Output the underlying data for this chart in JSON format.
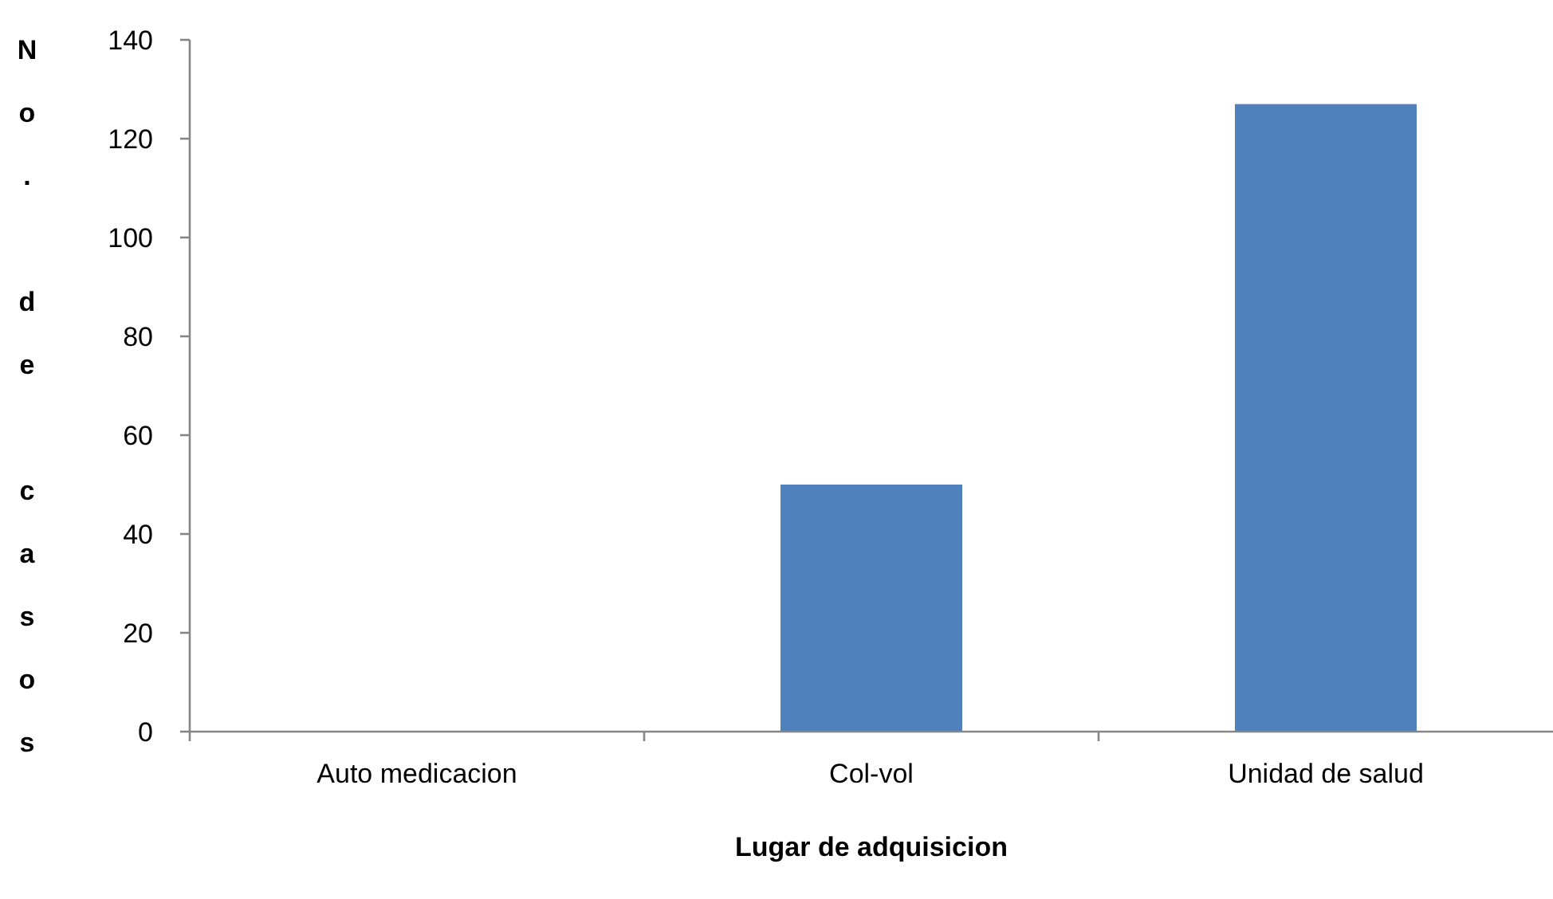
{
  "chart_data": {
    "type": "bar",
    "xlabel": "Lugar de adquisicion",
    "ylabel": "No. de casos",
    "categories": [
      "Auto medicacion",
      "Col-vol",
      "Unidad de salud"
    ],
    "values": [
      0,
      50,
      127
    ],
    "color": "#4f81bd",
    "ylim": [
      0,
      140
    ],
    "yticks": [
      0,
      20,
      40,
      60,
      80,
      100,
      120,
      140
    ]
  }
}
